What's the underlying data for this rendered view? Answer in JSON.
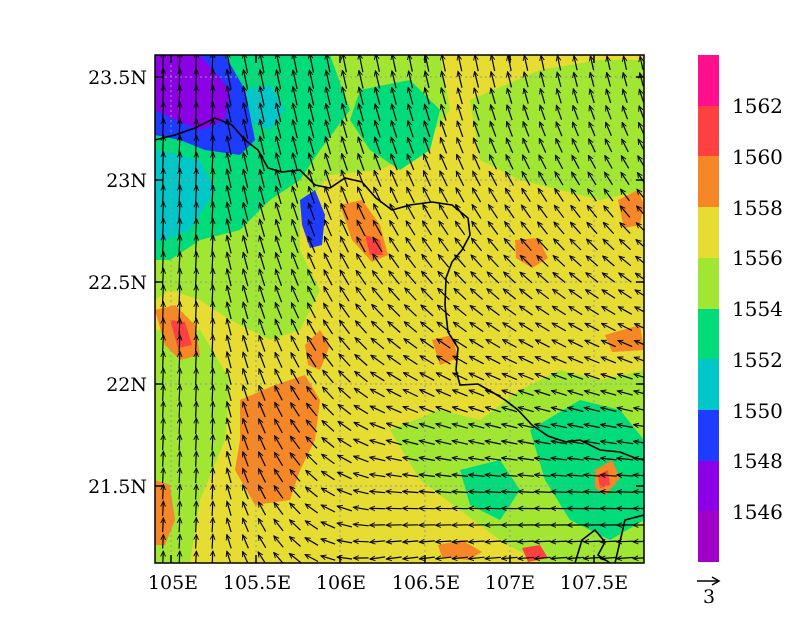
{
  "map": {
    "axes": {
      "x_ticks": [
        "105E",
        "105.5E",
        "106E",
        "106.5E",
        "107E",
        "107.5E"
      ],
      "y_ticks": [
        "23.5N",
        "23N",
        "22.5N",
        "22N",
        "21.5N"
      ]
    },
    "extent": {
      "lon": [
        104.95,
        107.8
      ],
      "lat": [
        21.1,
        23.62
      ]
    },
    "grid": "dotted"
  },
  "colorbar": {
    "labels": [
      "1562",
      "1560",
      "1558",
      "1556",
      "1554",
      "1552",
      "1550",
      "1548",
      "1546"
    ],
    "colors": [
      "#ff0f8c",
      "#ff4040",
      "#f58726",
      "#e6dc32",
      "#a0e632",
      "#00dc7a",
      "#00c8c8",
      "#1e3cff",
      "#a000c8",
      "#8c00e6"
    ]
  },
  "vector_reference": {
    "label": "3"
  },
  "chart_data": {
    "type": "heatmap",
    "variable_levels": [
      1546,
      1548,
      1550,
      1552,
      1554,
      1556,
      1558,
      1560,
      1562
    ],
    "x_ticks": [
      "105E",
      "105.5E",
      "106E",
      "106.5E",
      "107E",
      "107.5E"
    ],
    "y_ticks": [
      "23.5N",
      "23N",
      "22.5N",
      "22N",
      "21.5N"
    ],
    "lon_range": [
      104.95,
      107.8
    ],
    "lat_range": [
      21.1,
      23.62
    ],
    "background_level": "1556-1558",
    "overlay": "wind vectors (southerly in west, easterly in south/east)"
  }
}
